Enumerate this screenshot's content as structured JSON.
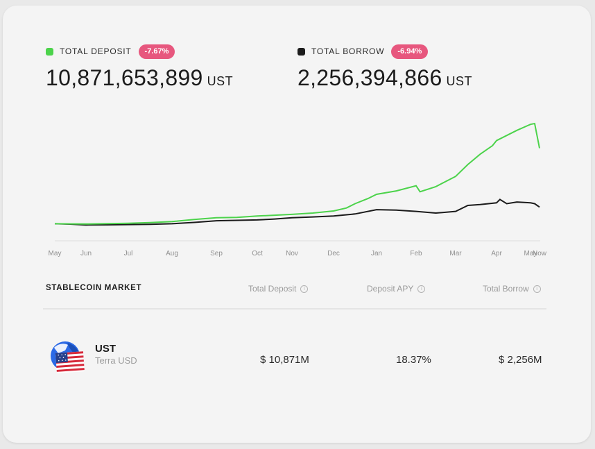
{
  "summary": {
    "deposit": {
      "label": "TOTAL DEPOSIT",
      "change": "-7.67%",
      "value": "10,871,653,899",
      "unit": "UST",
      "color": "#4cd34b"
    },
    "borrow": {
      "label": "TOTAL BORROW",
      "change": "-6.94%",
      "value": "2,256,394,866",
      "unit": "UST",
      "color": "#1b1b1b"
    }
  },
  "chart_data": {
    "type": "line",
    "x_ticks": [
      "May",
      "Jun",
      "Jul",
      "Aug",
      "Sep",
      "Oct",
      "Nov",
      "Dec",
      "Jan",
      "Feb",
      "Mar",
      "Apr",
      "May",
      "Now"
    ],
    "ylim": [
      0,
      14000000000
    ],
    "series": [
      {
        "key": "deposit",
        "color": "#4cd34b",
        "points": [
          [
            "May",
            0.0,
            50000000.0
          ],
          [
            "May",
            0.5,
            30000000.0
          ],
          [
            "Jun",
            0.0,
            20000000.0
          ],
          [
            "Jun",
            0.5,
            60000000.0
          ],
          [
            "Jul",
            0.0,
            100000000.0
          ],
          [
            "Jul",
            0.5,
            180000000.0
          ],
          [
            "Aug",
            0.0,
            300000000.0
          ],
          [
            "Aug",
            0.5,
            550000000.0
          ],
          [
            "Sep",
            0.0,
            750000000.0
          ],
          [
            "Sep",
            0.5,
            800000000.0
          ],
          [
            "Oct",
            0.0,
            950000000.0
          ],
          [
            "Oct",
            0.5,
            1050000000.0
          ],
          [
            "Nov",
            0.0,
            1150000000.0
          ],
          [
            "Nov",
            0.5,
            1300000000.0
          ],
          [
            "Dec",
            0.0,
            1550000000.0
          ],
          [
            "Dec",
            0.3,
            1900000000.0
          ],
          [
            "Dec",
            0.5,
            2400000000.0
          ],
          [
            "Dec",
            0.8,
            3000000000.0
          ],
          [
            "Jan",
            0.0,
            3500000000.0
          ],
          [
            "Jan",
            0.5,
            3900000000.0
          ],
          [
            "Feb",
            0.0,
            4500000000.0
          ],
          [
            "Feb",
            0.1,
            3800000000.0
          ],
          [
            "Feb",
            0.5,
            4400000000.0
          ],
          [
            "Mar",
            0.0,
            5600000000.0
          ],
          [
            "Mar",
            0.3,
            7000000000.0
          ],
          [
            "Mar",
            0.6,
            8200000000.0
          ],
          [
            "Mar",
            0.9,
            9200000000.0
          ],
          [
            "Apr",
            0.0,
            9800000000.0
          ],
          [
            "Apr",
            0.3,
            10400000000.0
          ],
          [
            "Apr",
            0.6,
            11000000000.0
          ],
          [
            "May",
            0.8,
            11700000000.0
          ],
          [
            "May",
            1.0,
            11800000000.0
          ],
          [
            "Now",
            0.0,
            8900000000.0
          ]
        ]
      },
      {
        "key": "borrow",
        "color": "#1b1b1b",
        "points": [
          [
            "May",
            0.0,
            50000000.0
          ],
          [
            "May",
            0.5,
            0.0
          ],
          [
            "Jun",
            0.0,
            -100000000.0
          ],
          [
            "Jun",
            0.5,
            -80000000.0
          ],
          [
            "Jul",
            0.0,
            -50000000.0
          ],
          [
            "Jul",
            0.5,
            -20000000.0
          ],
          [
            "Aug",
            0.0,
            50000000.0
          ],
          [
            "Aug",
            0.5,
            200000000.0
          ],
          [
            "Sep",
            0.0,
            400000000.0
          ],
          [
            "Sep",
            0.5,
            450000000.0
          ],
          [
            "Oct",
            0.0,
            500000000.0
          ],
          [
            "Oct",
            0.5,
            600000000.0
          ],
          [
            "Nov",
            0.0,
            750000000.0
          ],
          [
            "Nov",
            0.5,
            850000000.0
          ],
          [
            "Dec",
            0.0,
            950000000.0
          ],
          [
            "Dec",
            0.5,
            1200000000.0
          ],
          [
            "Jan",
            0.0,
            1700000000.0
          ],
          [
            "Jan",
            0.5,
            1650000000.0
          ],
          [
            "Feb",
            0.0,
            1500000000.0
          ],
          [
            "Feb",
            0.5,
            1300000000.0
          ],
          [
            "Mar",
            0.0,
            1500000000.0
          ],
          [
            "Mar",
            0.3,
            2200000000.0
          ],
          [
            "Mar",
            0.6,
            2300000000.0
          ],
          [
            "Apr",
            0.0,
            2500000000.0
          ],
          [
            "Apr",
            0.1,
            2900000000.0
          ],
          [
            "Apr",
            0.3,
            2400000000.0
          ],
          [
            "Apr",
            0.6,
            2600000000.0
          ],
          [
            "May",
            0.8,
            2500000000.0
          ],
          [
            "May",
            1.0,
            2400000000.0
          ],
          [
            "Now",
            0.0,
            2000000000.0
          ]
        ]
      }
    ]
  },
  "market": {
    "title": "STABLECOIN MARKET",
    "columns": [
      {
        "label": "Total Deposit",
        "info": "i"
      },
      {
        "label": "Deposit APY",
        "info": "i"
      },
      {
        "label": "Total Borrow",
        "info": "i"
      }
    ],
    "rows": [
      {
        "icon": "ust-flag-icon",
        "symbol": "UST",
        "name": "Terra USD",
        "deposit": "$ 10,871M",
        "apy": "18.37%",
        "borrow": "$ 2,256M"
      }
    ]
  }
}
